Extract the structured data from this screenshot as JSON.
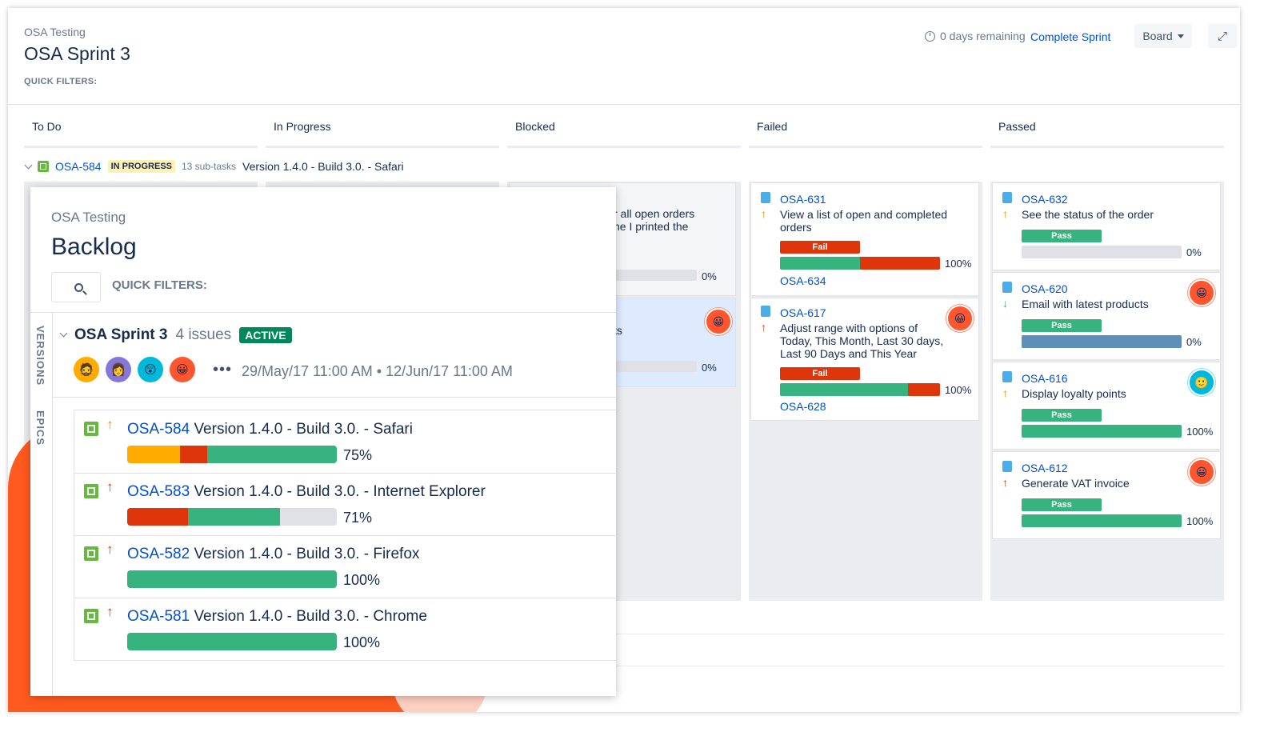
{
  "board": {
    "project": "OSA Testing",
    "title": "OSA Sprint 3",
    "quick_filters": "QUICK FILTERS:",
    "days_remaining": "0 days remaining",
    "complete_sprint": "Complete Sprint",
    "board_button": "Board",
    "columns": [
      "To Do",
      "In Progress",
      "Blocked",
      "Failed",
      "Passed"
    ]
  },
  "swimlane": {
    "key": "OSA-584",
    "status": "IN PROGRESS",
    "subtasks": "13 sub-tasks",
    "summary": "Version 1.4.0 - Build 3.0. - Safari"
  },
  "blocked_partial": {
    "text_line1": "r all open orders",
    "text_line2": "ne I printed the",
    "pct1": "0%",
    "text_line3": "ts",
    "pct2": "0%"
  },
  "failed_cards": [
    {
      "key": "OSA-631",
      "summary": "View a list of open and completed orders",
      "result": "Fail",
      "pct": "100%",
      "progress": [
        0.5,
        0.5
      ],
      "sub_key": "OSA-634"
    },
    {
      "key": "OSA-617",
      "summary": "Adjust range with options of Today, This Month, Last 30 days, Last 90 Days and This Year",
      "result": "Fail",
      "pct": "100%",
      "progress": [
        0.8,
        0.2
      ],
      "sub_key": "OSA-628"
    }
  ],
  "passed_cards": [
    {
      "key": "OSA-632",
      "summary": "See the status of the order",
      "result": "Pass",
      "pct": "0%"
    },
    {
      "key": "OSA-620",
      "summary": "Email with latest products",
      "result": "Pass",
      "pct": "0%"
    },
    {
      "key": "OSA-616",
      "summary": "Display loyalty points",
      "result": "Pass",
      "pct": "100%"
    },
    {
      "key": "OSA-612",
      "summary": "Generate VAT invoice",
      "result": "Pass",
      "pct": "100%"
    }
  ],
  "backlog": {
    "project": "OSA Testing",
    "title": "Backlog",
    "quick_filters": "QUICK FILTERS:",
    "rail": [
      "VERSIONS",
      "EPICS"
    ],
    "sprint_name": "OSA Sprint 3",
    "issue_count": "4 issues",
    "status": "ACTIVE",
    "more": "•••",
    "dates": "29/May/17 11:00 AM • 12/Jun/17 11:00 AM",
    "issues": [
      {
        "key": "OSA-584",
        "summary": "Version 1.4.0 - Build 3.0. - Safari",
        "pct": "75%",
        "progress": {
          "yellow": 0.25,
          "red": 0.13,
          "green": 0.62,
          "grey": 0
        }
      },
      {
        "key": "OSA-583",
        "summary": "Version 1.4.0 - Build 3.0. - Internet Explorer",
        "pct": "71%",
        "progress": {
          "yellow": 0,
          "red": 0.29,
          "green": 0.44,
          "grey": 0.27
        }
      },
      {
        "key": "OSA-582",
        "summary": "Version 1.4.0 - Build 3.0. - Firefox",
        "pct": "100%",
        "progress": {
          "yellow": 0,
          "red": 0,
          "green": 1,
          "grey": 0
        }
      },
      {
        "key": "OSA-581",
        "summary": "Version 1.4.0 - Build 3.0. - Chrome",
        "pct": "100%",
        "progress": {
          "yellow": 0,
          "red": 0,
          "green": 1,
          "grey": 0
        }
      }
    ]
  },
  "colors": {
    "accent": "#0052cc",
    "pass": "#36b37e",
    "fail": "#de350b",
    "active": "#00875a",
    "brand_orange": "#ff5a1f"
  }
}
